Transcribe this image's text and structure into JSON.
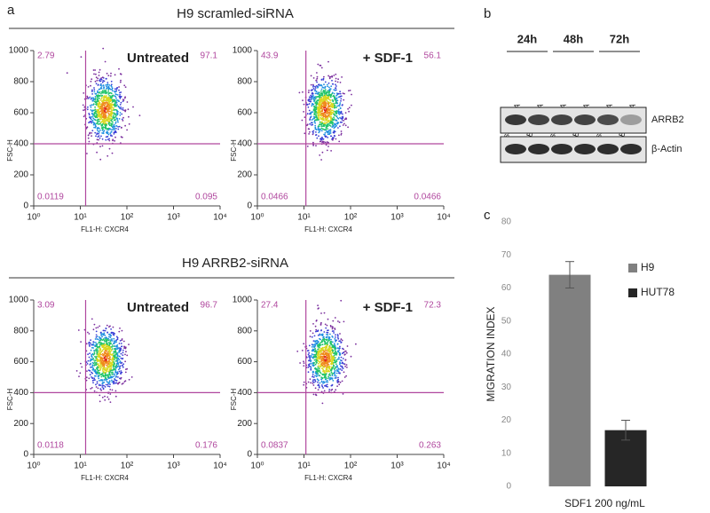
{
  "panels": [
    "a",
    "b",
    "c"
  ],
  "groups": [
    "H9 scramled-siRNA",
    "H9 ARRB2-siRNA"
  ],
  "blot": {
    "timepoints": [
      "24h",
      "48h",
      "72h"
    ],
    "lanes": [
      "scr-siRNA",
      "ARRB2-siRNA",
      "scr-siRNA",
      "ARRB2-siRNA",
      "scr-siRNA",
      "ARRB2-siRNA"
    ],
    "rows": [
      "ARRB2",
      "β-Actin"
    ]
  },
  "chart_data": [
    {
      "type": "flow",
      "annotation": "Untreated",
      "xlabel": "FL1-H: CXCR4",
      "ylabel": "FSC-H",
      "log_x": true,
      "xlim": [
        1,
        10000
      ],
      "xticks": [
        {
          "value": 1,
          "label": "10⁰"
        },
        {
          "value": 10,
          "label": "10¹"
        },
        {
          "value": 100,
          "label": "10²"
        },
        {
          "value": 1000,
          "label": "10³"
        },
        {
          "value": 10000,
          "label": "10⁴"
        }
      ],
      "ylim": [
        0,
        1000
      ],
      "yticks": [
        0,
        200,
        400,
        600,
        800,
        1000
      ],
      "gate": [
        13,
        400
      ],
      "gate_color": "#b0479e",
      "quadrants": [
        2.79,
        97.1,
        0.0119,
        0.095
      ]
    },
    {
      "type": "flow",
      "annotation": "+ SDF-1",
      "xlabel": "FL1-H: CXCR4",
      "ylabel": "FSC-H",
      "log_x": true,
      "xlim": [
        1,
        10000
      ],
      "xticks": [
        {
          "value": 1,
          "label": "10⁰"
        },
        {
          "value": 10,
          "label": "10¹"
        },
        {
          "value": 100,
          "label": "10²"
        },
        {
          "value": 1000,
          "label": "10³"
        },
        {
          "value": 10000,
          "label": "10⁴"
        }
      ],
      "ylim": [
        0,
        1000
      ],
      "yticks": [
        0,
        200,
        400,
        600,
        800,
        1000
      ],
      "gate": [
        11,
        400
      ],
      "gate_color": "#b0479e",
      "quadrants": [
        43.9,
        56.1,
        0.0466,
        0.0466
      ]
    },
    {
      "type": "flow",
      "annotation": "Untreated",
      "xlabel": "FL1-H: CXCR4",
      "ylabel": "FSC-H",
      "log_x": true,
      "xlim": [
        1,
        10000
      ],
      "xticks": [
        {
          "value": 1,
          "label": "10⁰"
        },
        {
          "value": 10,
          "label": "10¹"
        },
        {
          "value": 100,
          "label": "10²"
        },
        {
          "value": 1000,
          "label": "10³"
        },
        {
          "value": 10000,
          "label": "10⁴"
        }
      ],
      "ylim": [
        0,
        1000
      ],
      "yticks": [
        0,
        200,
        400,
        600,
        800,
        1000
      ],
      "gate": [
        13,
        400
      ],
      "gate_color": "#b0479e",
      "quadrants": [
        3.09,
        96.7,
        0.0118,
        0.176
      ]
    },
    {
      "type": "flow",
      "annotation": "+ SDF-1",
      "xlabel": "FL1-H: CXCR4",
      "ylabel": "FSC-H",
      "log_x": true,
      "xlim": [
        1,
        10000
      ],
      "xticks": [
        {
          "value": 1,
          "label": "10⁰"
        },
        {
          "value": 10,
          "label": "10¹"
        },
        {
          "value": 100,
          "label": "10²"
        },
        {
          "value": 1000,
          "label": "10³"
        },
        {
          "value": 10000,
          "label": "10⁴"
        }
      ],
      "ylim": [
        0,
        1000
      ],
      "yticks": [
        0,
        200,
        400,
        600,
        800,
        1000
      ],
      "gate": [
        11,
        400
      ],
      "gate_color": "#b0479e",
      "quadrants": [
        27.4,
        72.3,
        0.0837,
        0.263
      ]
    },
    {
      "type": "bar",
      "ylabel": "MIGRATION INDEX",
      "categories": [
        "SDF1 200 ng/mL"
      ],
      "series": [
        {
          "name": "H9",
          "color": "#808080",
          "values": [
            64
          ],
          "errors": [
            4
          ]
        },
        {
          "name": "HUT78",
          "color": "#262626",
          "values": [
            17
          ],
          "errors": [
            3
          ]
        }
      ],
      "ylim": [
        0,
        80
      ],
      "yticks": [
        0,
        10,
        20,
        30,
        40,
        50,
        60,
        70,
        80
      ],
      "legend": "upper right"
    }
  ]
}
